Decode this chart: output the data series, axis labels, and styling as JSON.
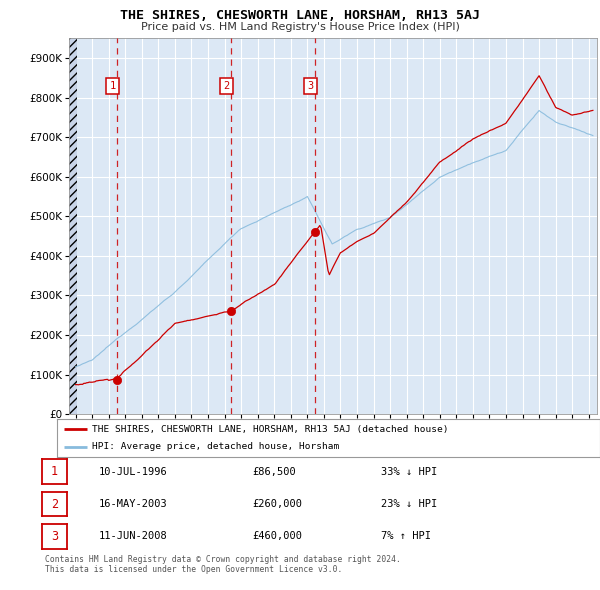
{
  "title": "THE SHIRES, CHESWORTH LANE, HORSHAM, RH13 5AJ",
  "subtitle": "Price paid vs. HM Land Registry's House Price Index (HPI)",
  "y_ticks": [
    0,
    100000,
    200000,
    300000,
    400000,
    500000,
    600000,
    700000,
    800000,
    900000
  ],
  "xlim_start": 1993.6,
  "xlim_end": 2025.5,
  "ylim_top": 950000,
  "sale_points": [
    {
      "year": 1996.53,
      "price": 86500,
      "label": "1"
    },
    {
      "year": 2003.37,
      "price": 260000,
      "label": "2"
    },
    {
      "year": 2008.44,
      "price": 460000,
      "label": "3"
    }
  ],
  "sale_vlines": [
    1996.53,
    2003.37,
    2008.44
  ],
  "property_color": "#cc0000",
  "hpi_color": "#88bbdd",
  "legend_property": "THE SHIRES, CHESWORTH LANE, HORSHAM, RH13 5AJ (detached house)",
  "legend_hpi": "HPI: Average price, detached house, Horsham",
  "table_rows": [
    {
      "num": "1",
      "date": "10-JUL-1996",
      "price": "£86,500",
      "hpi": "33% ↓ HPI"
    },
    {
      "num": "2",
      "date": "16-MAY-2003",
      "price": "£260,000",
      "hpi": "23% ↓ HPI"
    },
    {
      "num": "3",
      "date": "11-JUN-2008",
      "price": "£460,000",
      "hpi": "7% ↑ HPI"
    }
  ],
  "footnote": "Contains HM Land Registry data © Crown copyright and database right 2024.\nThis data is licensed under the Open Government Licence v3.0.",
  "plot_bg": "#dce8f5",
  "grid_color": "#ffffff",
  "hatch_color": "#c8d4e8"
}
